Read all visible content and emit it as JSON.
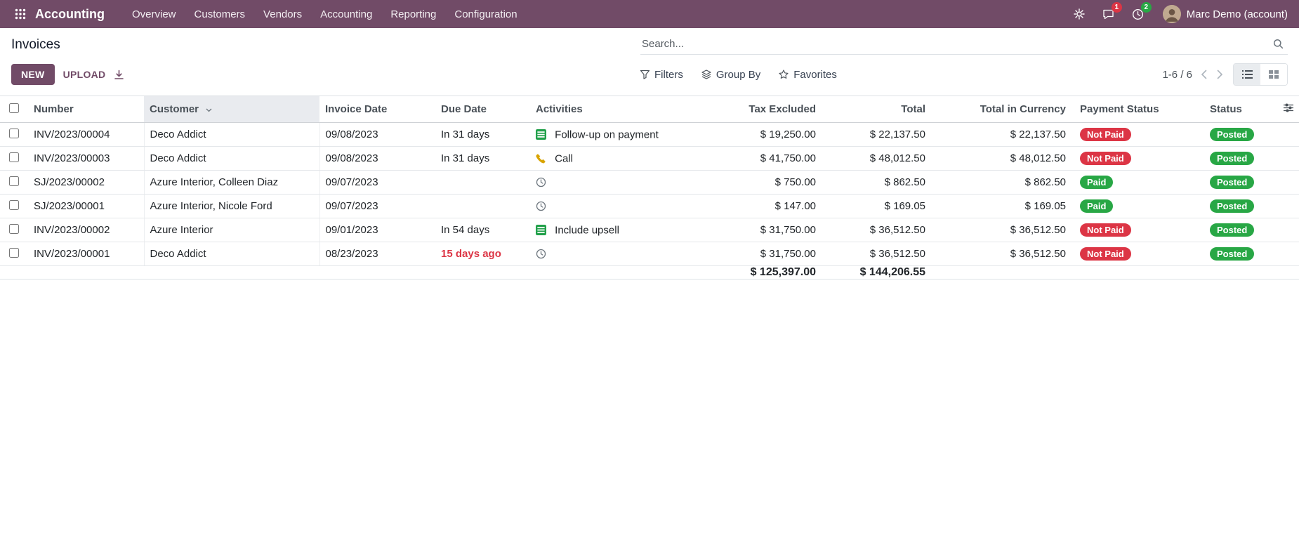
{
  "colors": {
    "primary": "#714B67",
    "danger": "#dc3545",
    "success": "#28a745",
    "overdue_text": "#dc3545"
  },
  "navbar": {
    "app_name": "Accounting",
    "menu_items": [
      "Overview",
      "Customers",
      "Vendors",
      "Accounting",
      "Reporting",
      "Configuration"
    ],
    "systray": {
      "messages_badge": "1",
      "activities_badge": "2",
      "user_name": "Marc Demo (account)"
    }
  },
  "control_panel": {
    "title": "Invoices",
    "search_placeholder": "Search...",
    "new_button": "NEW",
    "upload_button": "UPLOAD",
    "filters": "Filters",
    "group_by": "Group By",
    "favorites": "Favorites",
    "pager_text": "1-6 / 6"
  },
  "table": {
    "headers": {
      "number": "Number",
      "customer": "Customer",
      "invoice_date": "Invoice Date",
      "due_date": "Due Date",
      "activities": "Activities",
      "tax_excluded": "Tax Excluded",
      "total": "Total",
      "total_in_currency": "Total in Currency",
      "payment_status": "Payment Status",
      "status": "Status"
    },
    "rows": [
      {
        "number": "INV/2023/00004",
        "customer": "Deco Addict",
        "invoice_date": "09/08/2023",
        "due_date": "In 31 days",
        "due_late": false,
        "activity": {
          "icon": "list",
          "label": "Follow-up on payment"
        },
        "tax_excluded": "$ 19,250.00",
        "total": "$ 22,137.50",
        "total_in_currency": "$ 22,137.50",
        "payment_status": "Not Paid",
        "payment_state": "danger",
        "status": "Posted",
        "status_state": "success"
      },
      {
        "number": "INV/2023/00003",
        "customer": "Deco Addict",
        "invoice_date": "09/08/2023",
        "due_date": "In 31 days",
        "due_late": false,
        "activity": {
          "icon": "phone",
          "label": "Call"
        },
        "tax_excluded": "$ 41,750.00",
        "total": "$ 48,012.50",
        "total_in_currency": "$ 48,012.50",
        "payment_status": "Not Paid",
        "payment_state": "danger",
        "status": "Posted",
        "status_state": "success"
      },
      {
        "number": "SJ/2023/00002",
        "customer": "Azure Interior, Colleen Diaz",
        "invoice_date": "09/07/2023",
        "due_date": "",
        "due_late": false,
        "activity": {
          "icon": "clock",
          "label": ""
        },
        "tax_excluded": "$ 750.00",
        "total": "$ 862.50",
        "total_in_currency": "$ 862.50",
        "payment_status": "Paid",
        "payment_state": "success",
        "status": "Posted",
        "status_state": "success"
      },
      {
        "number": "SJ/2023/00001",
        "customer": "Azure Interior, Nicole Ford",
        "invoice_date": "09/07/2023",
        "due_date": "",
        "due_late": false,
        "activity": {
          "icon": "clock",
          "label": ""
        },
        "tax_excluded": "$ 147.00",
        "total": "$ 169.05",
        "total_in_currency": "$ 169.05",
        "payment_status": "Paid",
        "payment_state": "success",
        "status": "Posted",
        "status_state": "success"
      },
      {
        "number": "INV/2023/00002",
        "customer": "Azure Interior",
        "invoice_date": "09/01/2023",
        "due_date": "In 54 days",
        "due_late": false,
        "activity": {
          "icon": "list",
          "label": "Include upsell"
        },
        "tax_excluded": "$ 31,750.00",
        "total": "$ 36,512.50",
        "total_in_currency": "$ 36,512.50",
        "payment_status": "Not Paid",
        "payment_state": "danger",
        "status": "Posted",
        "status_state": "success"
      },
      {
        "number": "INV/2023/00001",
        "customer": "Deco Addict",
        "invoice_date": "08/23/2023",
        "due_date": "15 days ago",
        "due_late": true,
        "activity": {
          "icon": "clock",
          "label": ""
        },
        "tax_excluded": "$ 31,750.00",
        "total": "$ 36,512.50",
        "total_in_currency": "$ 36,512.50",
        "payment_status": "Not Paid",
        "payment_state": "danger",
        "status": "Posted",
        "status_state": "success"
      }
    ],
    "totals": {
      "tax_excluded": "$ 125,397.00",
      "total": "$ 144,206.55"
    }
  }
}
